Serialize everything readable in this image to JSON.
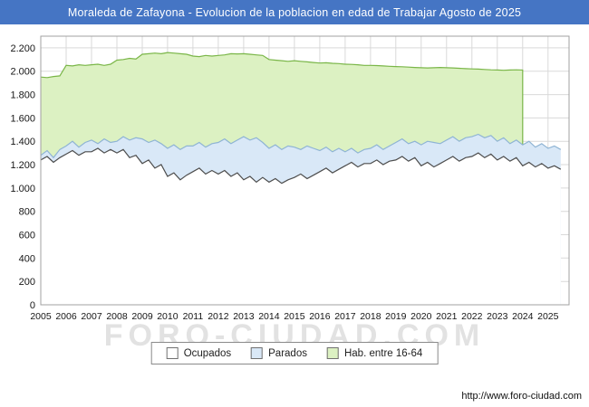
{
  "title": "Moraleda de Zafayona - Evolucion de la poblacion en edad de Trabajar Agosto de 2025",
  "watermark": "FORO-CIUDAD.COM",
  "footer": {
    "url": "http://www.foro-ciudad.com"
  },
  "colors": {
    "titlebar": "#4575c4",
    "grid": "#d9d9d9",
    "plot_border": "#a0a0a0",
    "hab_fill": "#dcf1c2",
    "hab_stroke": "#7ab648",
    "parados_fill": "#d9e8f7",
    "parados_stroke": "#8fb4d4",
    "ocupados_fill": "#ffffff",
    "ocupados_stroke": "#4d4d4d"
  },
  "legend": {
    "items": [
      {
        "label": "Ocupados",
        "fill": "#ffffff"
      },
      {
        "label": "Parados",
        "fill": "#d9e8f7"
      },
      {
        "label": "Hab. entre 16-64",
        "fill": "#dcf1c2"
      }
    ]
  },
  "chart_data": {
    "type": "area",
    "title": "Moraleda de Zafayona - Evolucion de la poblacion en edad de Trabajar Agosto de 2025",
    "xlabel": "",
    "ylabel": "",
    "ylim": [
      0,
      2300
    ],
    "x_start": 2005,
    "x_step": 0.25,
    "x_max": 2025.83,
    "grid": true,
    "legend_position": "bottom",
    "x_ticks": [
      "2005",
      "2006",
      "2007",
      "2008",
      "2009",
      "2010",
      "2011",
      "2012",
      "2013",
      "2014",
      "2015",
      "2016",
      "2017",
      "2018",
      "2019",
      "2020",
      "2021",
      "2022",
      "2023",
      "2024",
      "2025"
    ],
    "y_ticks": [
      "0",
      "200",
      "400",
      "600",
      "800",
      "1.000",
      "1.200",
      "1.400",
      "1.600",
      "1.800",
      "2.000",
      "2.200"
    ],
    "series": [
      {
        "name": "Hab. entre 16-64",
        "fill": "#dcf1c2",
        "stroke": "#7ab648",
        "end_drop": true,
        "values": [
          1950,
          1945,
          1955,
          1960,
          2050,
          2045,
          2055,
          2050,
          2055,
          2060,
          2050,
          2060,
          2095,
          2100,
          2110,
          2105,
          2145,
          2150,
          2155,
          2150,
          2160,
          2155,
          2150,
          2145,
          2130,
          2125,
          2135,
          2130,
          2135,
          2140,
          2150,
          2148,
          2150,
          2145,
          2140,
          2135,
          2100,
          2095,
          2090,
          2085,
          2090,
          2085,
          2080,
          2075,
          2070,
          2072,
          2068,
          2065,
          2060,
          2058,
          2055,
          2050,
          2050,
          2048,
          2045,
          2042,
          2040,
          2038,
          2035,
          2032,
          2030,
          2028,
          2030,
          2032,
          2030,
          2028,
          2025,
          2022,
          2020,
          2018,
          2015,
          2012,
          2010,
          2008,
          2010,
          2012,
          2010
        ]
      },
      {
        "name": "Parados",
        "fill": "#d9e8f7",
        "stroke": "#8fb4d4",
        "end_drop": false,
        "values": [
          1280,
          1320,
          1260,
          1330,
          1360,
          1400,
          1350,
          1390,
          1410,
          1380,
          1420,
          1390,
          1400,
          1440,
          1410,
          1430,
          1420,
          1390,
          1410,
          1380,
          1340,
          1370,
          1330,
          1360,
          1360,
          1390,
          1350,
          1380,
          1390,
          1420,
          1380,
          1410,
          1440,
          1410,
          1430,
          1390,
          1340,
          1370,
          1330,
          1360,
          1350,
          1330,
          1360,
          1340,
          1320,
          1350,
          1310,
          1340,
          1310,
          1340,
          1300,
          1330,
          1340,
          1370,
          1330,
          1360,
          1390,
          1420,
          1380,
          1400,
          1370,
          1400,
          1390,
          1380,
          1410,
          1440,
          1400,
          1430,
          1440,
          1460,
          1430,
          1450,
          1400,
          1430,
          1380,
          1410,
          1370,
          1400,
          1350,
          1380,
          1340,
          1360,
          1330
        ]
      },
      {
        "name": "Ocupados",
        "fill": "#ffffff",
        "stroke": "#4d4d4d",
        "end_drop": false,
        "values": [
          1240,
          1270,
          1220,
          1260,
          1290,
          1320,
          1280,
          1310,
          1310,
          1340,
          1300,
          1330,
          1300,
          1330,
          1260,
          1280,
          1210,
          1240,
          1170,
          1200,
          1100,
          1130,
          1070,
          1110,
          1140,
          1170,
          1120,
          1150,
          1120,
          1150,
          1100,
          1130,
          1070,
          1100,
          1050,
          1090,
          1050,
          1080,
          1040,
          1070,
          1090,
          1120,
          1080,
          1110,
          1140,
          1170,
          1130,
          1160,
          1190,
          1220,
          1180,
          1210,
          1210,
          1240,
          1200,
          1230,
          1240,
          1270,
          1230,
          1260,
          1190,
          1220,
          1180,
          1210,
          1240,
          1270,
          1230,
          1260,
          1270,
          1300,
          1260,
          1290,
          1240,
          1270,
          1230,
          1260,
          1190,
          1220,
          1180,
          1210,
          1170,
          1190,
          1160
        ]
      }
    ]
  }
}
